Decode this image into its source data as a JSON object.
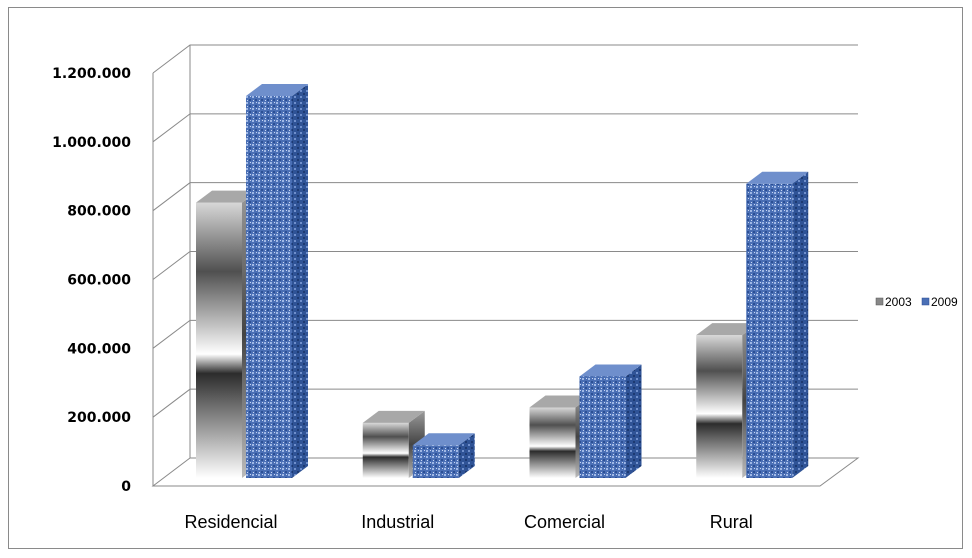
{
  "chart_data": {
    "type": "bar",
    "style": "3d-clustered-column",
    "categories": [
      "Residencial",
      "Industrial",
      "Comercial",
      "Rural"
    ],
    "series": [
      {
        "name": "2003",
        "values": [
          800000,
          160000,
          205000,
          415000
        ],
        "color": "#808080"
      },
      {
        "name": "2009",
        "values": [
          1110000,
          95000,
          295000,
          855000
        ],
        "color": "#4a6fb5"
      }
    ],
    "ylim": [
      0,
      1200000
    ],
    "yticks": [
      0,
      200000,
      400000,
      600000,
      800000,
      1000000,
      1200000
    ],
    "ytick_labels": [
      "0",
      "200.000",
      "400.000",
      "600.000",
      "800.000",
      "1.000.000",
      "1.200.000"
    ],
    "grid": true,
    "legend": "right"
  }
}
